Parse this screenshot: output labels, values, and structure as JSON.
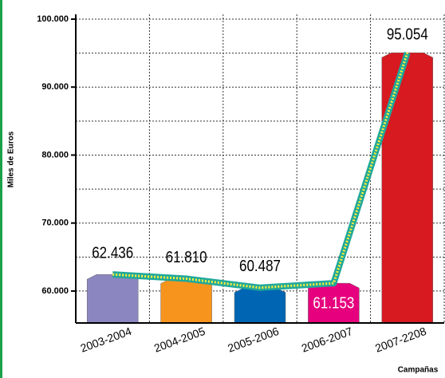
{
  "chart_data": {
    "type": "bar",
    "y_label": "Miles de Euros",
    "x_label": "Campañas",
    "categories": [
      "2003-2004",
      "2004-2005",
      "2005-2006",
      "2006-2007",
      "2007-2208"
    ],
    "values": [
      62436,
      61810,
      60487,
      61153,
      95054
    ],
    "value_labels": [
      "62.436",
      "61.810",
      "60.487",
      "61.153",
      "95.054"
    ],
    "colors": [
      "#8c86c0",
      "#f7941d",
      "#0066b3",
      "#e6007e",
      "#d71920"
    ],
    "line_color": "#20a89a",
    "ylim": [
      55300,
      100700
    ],
    "yticks": [
      {
        "value": 60000,
        "label": "60.000"
      },
      {
        "value": 70000,
        "label": "70.000"
      },
      {
        "value": 80000,
        "label": "80.000"
      },
      {
        "value": 90000,
        "label": "90.000"
      },
      {
        "value": 100000,
        "label": "100.000"
      }
    ],
    "minor_yticks": [
      65000,
      75000,
      85000,
      95000
    ],
    "grid": true
  }
}
